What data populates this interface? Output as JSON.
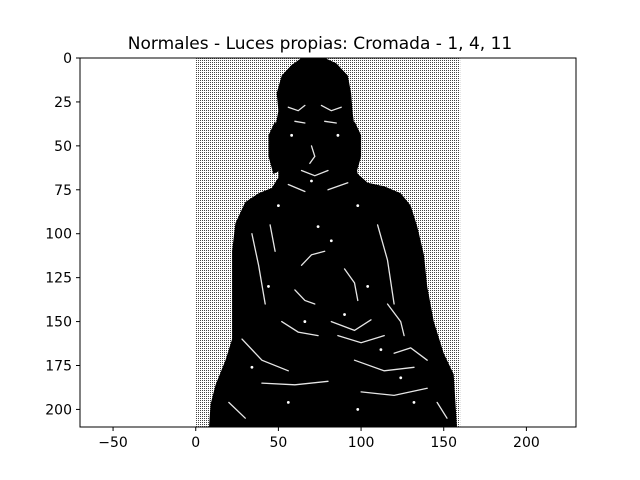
{
  "chart_data": {
    "type": "image",
    "title": "Normales - Luces propias: Cromada - 1, 4, 11",
    "xlabel": "",
    "ylabel": "",
    "xlim": [
      -70,
      230
    ],
    "ylim": [
      210,
      0
    ],
    "image_extent": {
      "x": [
        0,
        160
      ],
      "y": [
        0,
        210
      ]
    },
    "x_ticks": [
      -50,
      0,
      50,
      100,
      150,
      200
    ],
    "x_tick_labels": [
      "−50",
      "0",
      "50",
      "100",
      "150",
      "200"
    ],
    "y_ticks": [
      0,
      25,
      50,
      75,
      100,
      125,
      150,
      175,
      200
    ],
    "y_tick_labels": [
      "0",
      "25",
      "50",
      "75",
      "100",
      "125",
      "150",
      "175",
      "200"
    ],
    "grid": false,
    "subject": "seated Buddha statue rendered with chrome shading",
    "colors": {
      "background_dots": "#d9d9d9",
      "figure": "#000000",
      "highlight": "#ffffff"
    }
  }
}
